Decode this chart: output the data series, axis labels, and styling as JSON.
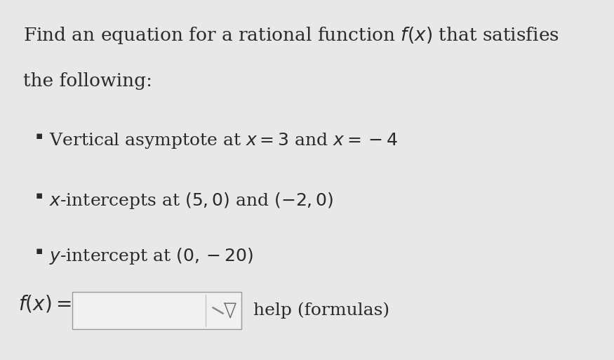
{
  "background_color": "#e8e8e8",
  "title_line1": "Find an equation for a rational function $f(x)$ that satisfies",
  "title_line2": "the following:",
  "bullet1_prefix": "Vertical asymptote at ",
  "bullet1_math": "$x = 3$",
  "bullet1_mid": " and ",
  "bullet1_math2": "$x = -4$",
  "bullet2_prefix": "$x$-intercepts at ",
  "bullet2_math": "$(5, 0)$",
  "bullet2_mid": " and ",
  "bullet2_math2": "$(-2, 0)$",
  "bullet3_prefix": "$y$-intercept at ",
  "bullet3_math": "$(0, -20)$",
  "bullet1_full": "Vertical asymptote at $x = 3$ and $x = -4$",
  "bullet2_full": "$x$-intercepts at $(5, 0)$ and $(-2, 0)$",
  "bullet3_full": "$y$-intercept at $(0, -20)$",
  "fx_label": "$f(x) =$",
  "help_text": "help (formulas)",
  "text_color": "#2a2a2a",
  "box_color": "#f0f0f0",
  "box_border_color": "#999999",
  "bullet_char": "▪",
  "font_size_title": 19,
  "font_size_bullet": 18,
  "font_size_fx": 20,
  "font_size_help": 18
}
